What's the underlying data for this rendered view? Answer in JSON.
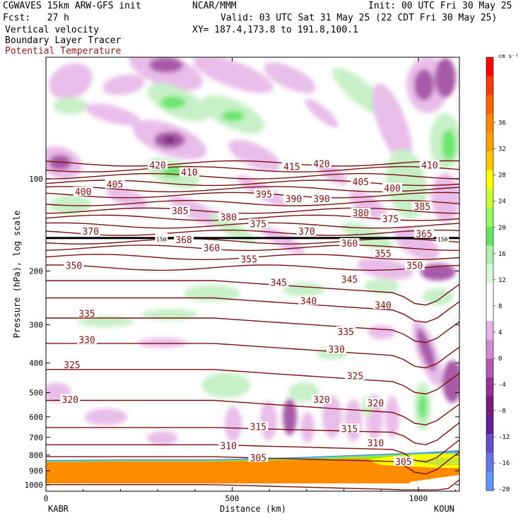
{
  "header": {
    "model": "CGWAVES 15km ARW-GFS init",
    "org": "NCAR/MMM",
    "init": "Init: 00 UTC Fri 30 May 25",
    "fcst": "Fcst:   27 h",
    "valid": "Valid: 03 UTC Sat 31 May 25 (22 CDT Fri 30 May 25)",
    "field1": "Vertical velocity",
    "field2": "Boundary Layer Tracer",
    "field3": "Potential Temperature",
    "xy": "XY= 187.4,173.8 to 191.8,100.1"
  },
  "chart_data": {
    "type": "heatmap",
    "xlabel": "Distance (km)",
    "ylabel": "Pressure (hPa), log scale",
    "xlim": [
      0,
      1110
    ],
    "ylim": [
      1050,
      40
    ],
    "y_scale": "log",
    "x_ticks": [
      0,
      500,
      1000
    ],
    "y_ticks": [
      100,
      200,
      300,
      400,
      500,
      600,
      700,
      800,
      900,
      1000
    ],
    "endpoint_labels": {
      "left": "KABR",
      "right": "KOUN"
    },
    "colorbar": {
      "units": "cm s⁻¹",
      "tick_labels": [
        36,
        32,
        28,
        24,
        20,
        16,
        12,
        8,
        4,
        0,
        -4,
        -8,
        -12,
        -16,
        -20
      ],
      "colors": [
        "#ff0000",
        "#ff3a00",
        "#ff6400",
        "#ff8800",
        "#ffa000",
        "#ffc800",
        "#ffff00",
        "#c8ff32",
        "#96ff64",
        "#64e664",
        "#b4f0b4",
        "#dcf8dc",
        "#ffffff",
        "#ffffff",
        "#e6b4e6",
        "#d28cd2",
        "#b45ab4",
        "#963296",
        "#781e78",
        "#641e96",
        "#6450c8",
        "#6478e6",
        "#6496ff"
      ]
    },
    "contours": {
      "name": "Potential Temperature",
      "color": "#7a1010",
      "labels": [
        {
          "value": "420",
          "x": 300,
          "p": 90
        },
        {
          "value": "410",
          "x": 385,
          "p": 95
        },
        {
          "value": "415",
          "x": 660,
          "p": 91
        },
        {
          "value": "420",
          "x": 740,
          "p": 89
        },
        {
          "value": "410",
          "x": 1030,
          "p": 90
        },
        {
          "value": "400",
          "x": 100,
          "p": 110
        },
        {
          "value": "405",
          "x": 185,
          "p": 104
        },
        {
          "value": "405",
          "x": 845,
          "p": 102
        },
        {
          "value": "400",
          "x": 930,
          "p": 107
        },
        {
          "value": "395",
          "x": 585,
          "p": 112
        },
        {
          "value": "390",
          "x": 665,
          "p": 116
        },
        {
          "value": "390",
          "x": 740,
          "p": 116
        },
        {
          "value": "385",
          "x": 360,
          "p": 127
        },
        {
          "value": "380",
          "x": 490,
          "p": 133
        },
        {
          "value": "375",
          "x": 570,
          "p": 140
        },
        {
          "value": "380",
          "x": 845,
          "p": 129
        },
        {
          "value": "375",
          "x": 925,
          "p": 135
        },
        {
          "value": "385",
          "x": 1010,
          "p": 123
        },
        {
          "value": "370",
          "x": 120,
          "p": 148
        },
        {
          "value": "370",
          "x": 700,
          "p": 148
        },
        {
          "value": "365",
          "x": 1015,
          "p": 151
        },
        {
          "value": "150",
          "x": 310,
          "p": 156
        },
        {
          "value": "150",
          "x": 1065,
          "p": 156
        },
        {
          "value": "368",
          "x": 370,
          "p": 158
        },
        {
          "value": "360",
          "x": 445,
          "p": 168
        },
        {
          "value": "360",
          "x": 815,
          "p": 162
        },
        {
          "value": "355",
          "x": 545,
          "p": 183
        },
        {
          "value": "355",
          "x": 905,
          "p": 175
        },
        {
          "value": "350",
          "x": 75,
          "p": 192
        },
        {
          "value": "350",
          "x": 990,
          "p": 192
        },
        {
          "value": "345",
          "x": 625,
          "p": 218
        },
        {
          "value": "345",
          "x": 815,
          "p": 213
        },
        {
          "value": "340",
          "x": 705,
          "p": 250
        },
        {
          "value": "340",
          "x": 905,
          "p": 258
        },
        {
          "value": "335",
          "x": 110,
          "p": 275
        },
        {
          "value": "335",
          "x": 805,
          "p": 315
        },
        {
          "value": "330",
          "x": 110,
          "p": 335
        },
        {
          "value": "330",
          "x": 780,
          "p": 360
        },
        {
          "value": "325",
          "x": 70,
          "p": 405
        },
        {
          "value": "325",
          "x": 830,
          "p": 440
        },
        {
          "value": "320",
          "x": 65,
          "p": 525
        },
        {
          "value": "320",
          "x": 740,
          "p": 525
        },
        {
          "value": "320",
          "x": 885,
          "p": 540
        },
        {
          "value": "315",
          "x": 570,
          "p": 645
        },
        {
          "value": "315",
          "x": 815,
          "p": 655
        },
        {
          "value": "310",
          "x": 490,
          "p": 745
        },
        {
          "value": "310",
          "x": 885,
          "p": 730
        },
        {
          "value": "305",
          "x": 570,
          "p": 815
        },
        {
          "value": "305",
          "x": 960,
          "p": 840
        }
      ]
    }
  }
}
